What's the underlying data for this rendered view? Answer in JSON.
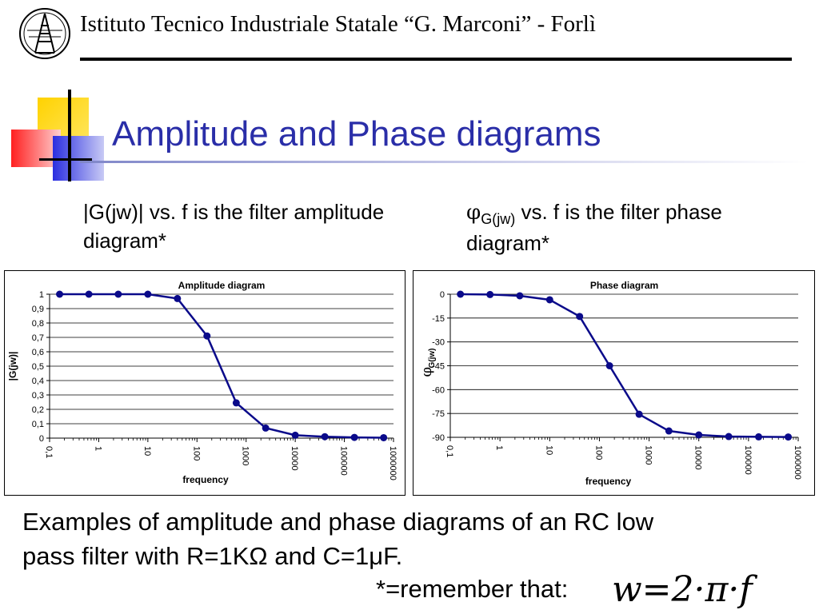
{
  "header": {
    "institution": "Istituto Tecnico Industriale Statale “G. Marconi” -  Forlì"
  },
  "slide": {
    "title": "Amplitude and Phase diagrams"
  },
  "captions": {
    "left": "|G(jw)| vs. f is the filter amplitude diagram*",
    "right_symbol": "φ",
    "right_subscript": "G(jw)",
    "right_text": " vs. f is the filter phase diagram*"
  },
  "footer": {
    "line1": "Examples of amplitude and phase diagrams of an RC low",
    "line2": "pass filter with R=1KΩ and C=1μF.",
    "remember": "*=remember that:",
    "formula": "w=2·π·f"
  },
  "chart_data": [
    {
      "type": "line",
      "title": "Amplitude diagram",
      "xlabel": "frequency",
      "ylabel": "|G(jw)|",
      "x_scale": "log",
      "xlim": [
        0.1,
        1000000
      ],
      "ylim": [
        0,
        1
      ],
      "x_ticks": [
        "0,1",
        "1",
        "10",
        "100",
        "1000",
        "10000",
        "100000",
        "1000000"
      ],
      "y_ticks": [
        "0",
        "0,1",
        "0,2",
        "0,3",
        "0,4",
        "0,5",
        "0,6",
        "0,7",
        "0,8",
        "0,9",
        "1"
      ],
      "grid": "horizontal",
      "line_color": "#0a0a8a",
      "series": [
        {
          "x": [
            0.16,
            0.63,
            2.5,
            10,
            40,
            160,
            630,
            2500,
            10000,
            40000,
            160000,
            630000
          ],
          "y": [
            1.0,
            1.0,
            1.0,
            1.0,
            0.97,
            0.71,
            0.245,
            0.07,
            0.02,
            0.01,
            0.005,
            0.003
          ]
        }
      ]
    },
    {
      "type": "line",
      "title": "Phase diagram",
      "xlabel": "frequency",
      "ylabel_symbol": "φ",
      "ylabel_subscript": "G(jw)",
      "x_scale": "log",
      "xlim": [
        0.1,
        1000000
      ],
      "ylim": [
        -90,
        0
      ],
      "x_ticks": [
        "0,1",
        "1",
        "10",
        "100",
        "1000",
        "10000",
        "100000",
        "1000000"
      ],
      "y_ticks": [
        "0",
        "-15",
        "-30",
        "-45",
        "-60",
        "-75",
        "-90"
      ],
      "grid": "horizontal",
      "line_color": "#0a0a8a",
      "series": [
        {
          "x": [
            0.16,
            0.63,
            2.5,
            10,
            40,
            160,
            630,
            2500,
            10000,
            40000,
            160000,
            630000
          ],
          "y": [
            0,
            -0.2,
            -1,
            -3.5,
            -14,
            -45,
            -75.5,
            -86,
            -88.5,
            -89.5,
            -89.7,
            -89.8
          ]
        }
      ]
    }
  ]
}
